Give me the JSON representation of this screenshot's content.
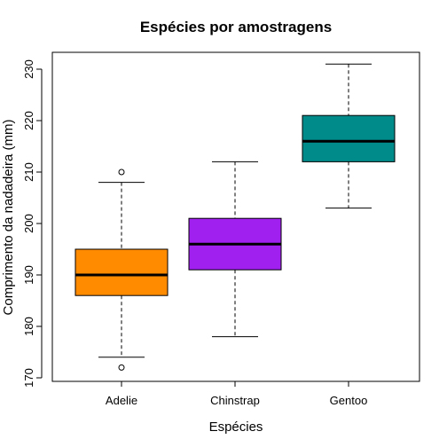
{
  "chart_data": {
    "type": "box",
    "title": "Espécies por amostragens",
    "xlabel": "Espécies",
    "ylabel": "Comprimento da nadadeira (mm)",
    "categories": [
      "Adelie",
      "Chinstrap",
      "Gentoo"
    ],
    "ylim": [
      170,
      230
    ],
    "yticks": [
      170,
      180,
      190,
      200,
      210,
      220,
      230
    ],
    "series": [
      {
        "category": "Adelie",
        "color": "#FF8C00",
        "whisker_low": 174,
        "q1": 186,
        "median": 190,
        "q3": 195,
        "whisker_high": 208,
        "outliers": [
          210,
          172
        ]
      },
      {
        "category": "Chinstrap",
        "color": "#A020F0",
        "whisker_low": 178,
        "q1": 191,
        "median": 196,
        "q3": 201,
        "whisker_high": 212,
        "outliers": []
      },
      {
        "category": "Gentoo",
        "color": "#008B8B",
        "whisker_low": 203,
        "q1": 212,
        "median": 216,
        "q3": 221,
        "whisker_high": 231,
        "outliers": []
      }
    ],
    "grid": false,
    "legend": "none"
  }
}
